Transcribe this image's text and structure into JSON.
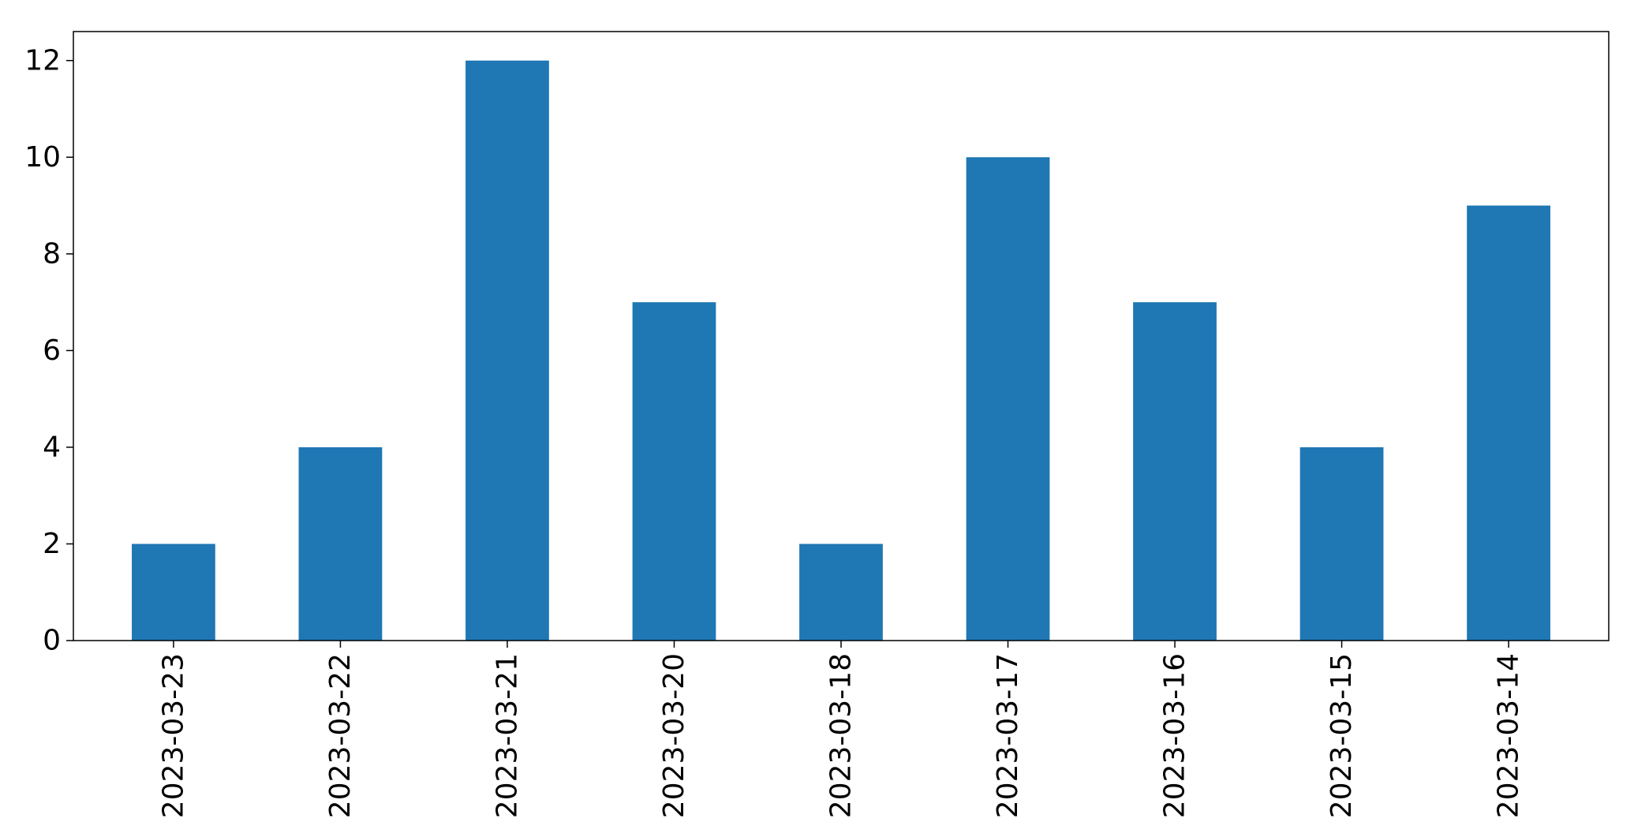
{
  "chart_data": {
    "type": "bar",
    "title": "",
    "xlabel": "",
    "ylabel": "",
    "categories": [
      "2023-03-23",
      "2023-03-22",
      "2023-03-21",
      "2023-03-20",
      "2023-03-18",
      "2023-03-17",
      "2023-03-16",
      "2023-03-15",
      "2023-03-14"
    ],
    "values": [
      2,
      4,
      12,
      7,
      2,
      10,
      7,
      4,
      9
    ],
    "ylim": [
      0,
      12.6
    ],
    "yticks": [
      0,
      2,
      4,
      6,
      8,
      10,
      12
    ],
    "grid": false,
    "legend": "none",
    "bar_color": "#1f77b4"
  }
}
